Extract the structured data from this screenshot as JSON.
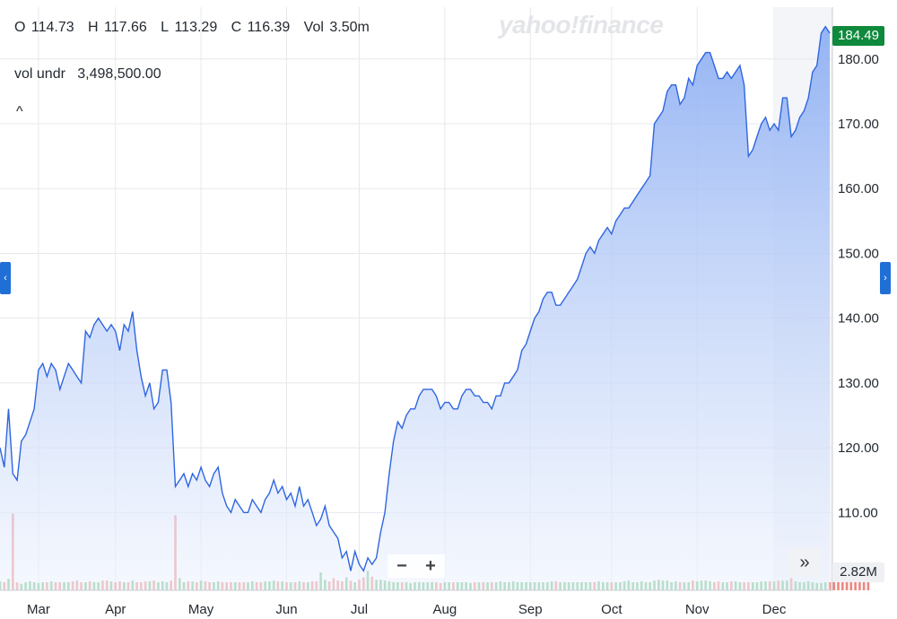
{
  "ohlc": {
    "open_label": "O",
    "open": "114.73",
    "high_label": "H",
    "high": "117.66",
    "low_label": "L",
    "low": "113.29",
    "close_label": "C",
    "close": "116.39",
    "vol_label": "Vol",
    "vol": "3.50m"
  },
  "vol_undr": {
    "label": "vol undr",
    "value": "3,498,500.00"
  },
  "watermark": "yahoo!finance",
  "last_price_tag": "184.49",
  "last_volume_tag": "2.82M",
  "zoom": {
    "minus": "−",
    "plus": "+"
  },
  "colors": {
    "line": "#2f66e0",
    "area_top": "#8fb0f3",
    "area_bottom": "#eef3fd",
    "vol_up": "#4fb66b",
    "vol_down": "#e8716a",
    "price_tag": "#0f8a3c",
    "nav": "#1f6fd6"
  },
  "chart_data": {
    "type": "area",
    "title": "",
    "xlabel": "",
    "ylabel": "",
    "ylim": [
      98,
      188
    ],
    "y_ticks": [
      "110.00",
      "120.00",
      "130.00",
      "140.00",
      "150.00",
      "160.00",
      "170.00",
      "180.00"
    ],
    "x_tick_labels": [
      "Mar",
      "Apr",
      "May",
      "Jun",
      "Jul",
      "Aug",
      "Sep",
      "Oct",
      "Nov",
      "Dec"
    ],
    "grid": true,
    "series": [
      {
        "kind": "price",
        "values": [
          120,
          117,
          126,
          116,
          115,
          121,
          122,
          124,
          126,
          132,
          133,
          131,
          133,
          132,
          129,
          131,
          133,
          132,
          131,
          130,
          138,
          137,
          139,
          140,
          139,
          138,
          139,
          138,
          135,
          139,
          138,
          141,
          135,
          131,
          128,
          130,
          126,
          127,
          132,
          132,
          127,
          114,
          115,
          116,
          114,
          116,
          115,
          117,
          115,
          114,
          116,
          117,
          113,
          111,
          110,
          112,
          111,
          110,
          110,
          112,
          111,
          110,
          112,
          113,
          115,
          113,
          114,
          112,
          113,
          111,
          114,
          111,
          112,
          110,
          108,
          109,
          111,
          108,
          107,
          106,
          103,
          104,
          101,
          104,
          102,
          101,
          103,
          102,
          103,
          107,
          110,
          116,
          121,
          124,
          123,
          125,
          126,
          126,
          128,
          129,
          129,
          129,
          128,
          126,
          127,
          127,
          126,
          126,
          128,
          129,
          129,
          128,
          128,
          127,
          127,
          126,
          128,
          128,
          130,
          130,
          131,
          132,
          135,
          136,
          138,
          140,
          141,
          143,
          144,
          144,
          142,
          142,
          143,
          144,
          145,
          146,
          148,
          150,
          151,
          150,
          152,
          153,
          154,
          153,
          155,
          156,
          157,
          157,
          158,
          159,
          160,
          161,
          162,
          170,
          171,
          172,
          175,
          176,
          176,
          173,
          174,
          177,
          176,
          179,
          180,
          181,
          181,
          179,
          177,
          177,
          178,
          177,
          178,
          179,
          176,
          165,
          166,
          168,
          170,
          171,
          169,
          170,
          169,
          174,
          174,
          168,
          169,
          171,
          172,
          174,
          178,
          179,
          184,
          185,
          184
        ]
      },
      {
        "kind": "volume",
        "values": [
          1.1,
          1.0,
          1.4,
          9.5,
          1.0,
          0.8,
          1.0,
          1.1,
          1.0,
          0.9,
          1.0,
          1.0,
          1.1,
          1.0,
          1.0,
          1.0,
          1.0,
          1.1,
          1.2,
          1.0,
          1.0,
          1.1,
          1.0,
          1.0,
          1.2,
          1.2,
          1.1,
          1.0,
          1.1,
          1.0,
          1.0,
          1.2,
          1.0,
          1.0,
          1.1,
          1.1,
          1.2,
          1.0,
          1.1,
          1.0,
          1.2,
          9.3,
          1.5,
          1.0,
          1.1,
          1.1,
          1.0,
          1.2,
          1.1,
          1.0,
          1.0,
          1.1,
          1.0,
          1.0,
          1.0,
          1.0,
          1.0,
          1.0,
          1.0,
          1.1,
          1.0,
          1.0,
          1.1,
          1.1,
          1.2,
          1.1,
          1.1,
          1.0,
          1.0,
          1.0,
          1.1,
          1.0,
          1.0,
          1.1,
          1.1,
          2.2,
          1.3,
          1.1,
          1.5,
          1.2,
          1.1,
          1.6,
          1.2,
          1.0,
          1.3,
          1.6,
          2.4,
          1.7,
          1.3,
          1.3,
          1.2,
          1.1,
          1.0,
          1.0,
          1.0,
          1.0,
          0.9,
          1.0,
          1.0,
          1.0,
          1.0,
          1.0,
          1.0,
          0.9,
          1.0,
          1.0,
          1.0,
          1.0,
          1.0,
          1.0,
          0.9,
          1.0,
          1.0,
          1.0,
          1.0,
          1.0,
          1.0,
          1.1,
          1.0,
          1.0,
          1.1,
          1.0,
          1.0,
          1.0,
          1.0,
          1.0,
          1.0,
          1.0,
          1.0,
          1.1,
          1.1,
          1.0,
          1.0,
          1.0,
          1.0,
          1.0,
          1.0,
          1.0,
          1.0,
          1.0,
          1.1,
          1.0,
          1.0,
          1.0,
          1.0,
          1.0,
          1.1,
          1.2,
          1.0,
          1.0,
          1.1,
          1.0,
          1.0,
          1.2,
          1.3,
          1.2,
          1.2,
          1.0,
          1.1,
          1.0,
          1.0,
          1.0,
          1.2,
          1.1,
          1.2,
          1.2,
          1.1,
          1.0,
          1.1,
          1.0,
          1.0,
          1.1,
          1.1,
          1.0,
          1.0,
          1.0,
          1.0,
          1.0,
          1.1,
          1.1,
          1.1,
          1.1,
          1.2,
          1.2,
          1.2,
          1.5,
          1.1,
          1.0,
          1.0,
          1.1,
          1.0,
          0.9,
          0.9,
          1.0,
          1.0,
          1.0,
          1.0,
          1.1,
          1.0,
          1.0,
          1.0,
          1.0,
          1.0,
          1.0
        ]
      }
    ]
  }
}
